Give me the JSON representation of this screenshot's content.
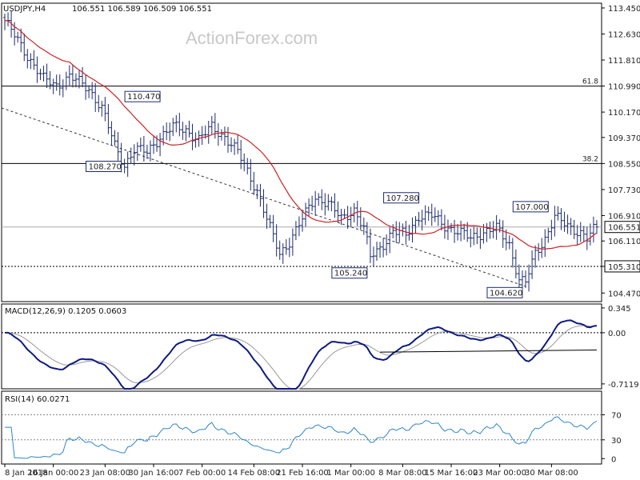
{
  "colors": {
    "candles": "#1e2a6e",
    "ma": "#cc2222",
    "trend": "#333333",
    "macd": "#0e1a7e",
    "signal": "#9a9a9a",
    "rsi": "#2f86c8",
    "grid": "#000000"
  },
  "header": {
    "instrument": "USDJPY,H4",
    "ohlc": "106.551 106.589 106.509 106.551"
  },
  "watermark": "ActionForex.com",
  "chart_data": [
    {
      "type": "candlestick",
      "panel": "price",
      "ylim": [
        104.2,
        113.6
      ],
      "y_ticks": [
        "113.450",
        "112.630",
        "111.810",
        "110.990",
        "110.170",
        "109.370",
        "108.550",
        "107.730",
        "106.910",
        "106.110",
        "105.310",
        "104.470"
      ],
      "current_price": "106.551",
      "ma_label": "",
      "x_ticks": [
        "8 Jan 2018",
        "16 Jan 00:00",
        "23 Jan 08:00",
        "30 Jan 16:00",
        "7 Feb 00:00",
        "14 Feb 08:00",
        "21 Feb 16:00",
        "1 Mar 00:00",
        "8 Mar 08:00",
        "15 Mar 16:00",
        "23 Mar 00:00",
        "30 Mar 08:00"
      ],
      "fib_levels": [
        {
          "label": "61.8",
          "price": 110.99
        },
        {
          "label": "38.2",
          "price": 108.55
        }
      ],
      "support_level": {
        "label": "105.310",
        "price": 105.31
      },
      "annotations": [
        {
          "text": "110.470",
          "price": 110.47,
          "index": 48
        },
        {
          "text": "108.270",
          "price": 108.27,
          "index": 36
        },
        {
          "text": "107.280",
          "price": 107.28,
          "index": 128
        },
        {
          "text": "105.240",
          "price": 105.24,
          "index": 112
        },
        {
          "text": "107.000",
          "price": 107.0,
          "index": 168
        },
        {
          "text": "104.620",
          "price": 104.62,
          "index": 160
        }
      ],
      "close_anchors": [
        [
          0,
          113.05
        ],
        [
          6,
          112.1
        ],
        [
          12,
          111.2
        ],
        [
          16,
          111.0
        ],
        [
          20,
          111.3
        ],
        [
          26,
          110.9
        ],
        [
          30,
          110.3
        ],
        [
          34,
          109.1
        ],
        [
          37,
          108.5
        ],
        [
          40,
          109.0
        ],
        [
          44,
          108.9
        ],
        [
          48,
          109.4
        ],
        [
          52,
          109.7
        ],
        [
          56,
          109.6
        ],
        [
          60,
          109.3
        ],
        [
          64,
          109.7
        ],
        [
          68,
          109.4
        ],
        [
          72,
          108.9
        ],
        [
          74,
          108.5
        ],
        [
          78,
          107.7
        ],
        [
          82,
          106.5
        ],
        [
          85,
          105.7
        ],
        [
          88,
          106.1
        ],
        [
          92,
          106.8
        ],
        [
          96,
          107.5
        ],
        [
          100,
          107.3
        ],
        [
          104,
          106.8
        ],
        [
          108,
          107.1
        ],
        [
          111,
          106.5
        ],
        [
          113,
          105.6
        ],
        [
          116,
          105.9
        ],
        [
          120,
          106.4
        ],
        [
          124,
          106.3
        ],
        [
          128,
          106.9
        ],
        [
          132,
          106.9
        ],
        [
          136,
          106.6
        ],
        [
          140,
          106.4
        ],
        [
          144,
          106.2
        ],
        [
          148,
          106.4
        ],
        [
          152,
          106.5
        ],
        [
          156,
          106.0
        ],
        [
          159,
          104.9
        ],
        [
          161,
          104.8
        ],
        [
          164,
          105.7
        ],
        [
          167,
          106.2
        ],
        [
          170,
          106.9
        ],
        [
          172,
          106.7
        ],
        [
          175,
          106.5
        ],
        [
          178,
          106.4
        ],
        [
          180,
          106.2
        ],
        [
          183,
          106.55
        ]
      ]
    },
    {
      "type": "line",
      "panel": "macd",
      "title": "MACD(12,26,9) 0.1205 0.0603",
      "ylim": [
        -0.78,
        0.4
      ],
      "y_ticks": [
        "0.345",
        "0.00",
        "-0.7119"
      ],
      "series": [
        {
          "name": "",
          "values_key": "derived-from-price"
        }
      ],
      "support_line": [
        [
          116,
          -0.27
        ],
        [
          183,
          -0.24
        ]
      ]
    },
    {
      "type": "line",
      "panel": "rsi",
      "title": "RSI(14) 60.0271",
      "ylim": [
        0,
        100
      ],
      "y_ticks": [
        "70",
        "30",
        "0"
      ],
      "levels": [
        70,
        30
      ]
    }
  ]
}
